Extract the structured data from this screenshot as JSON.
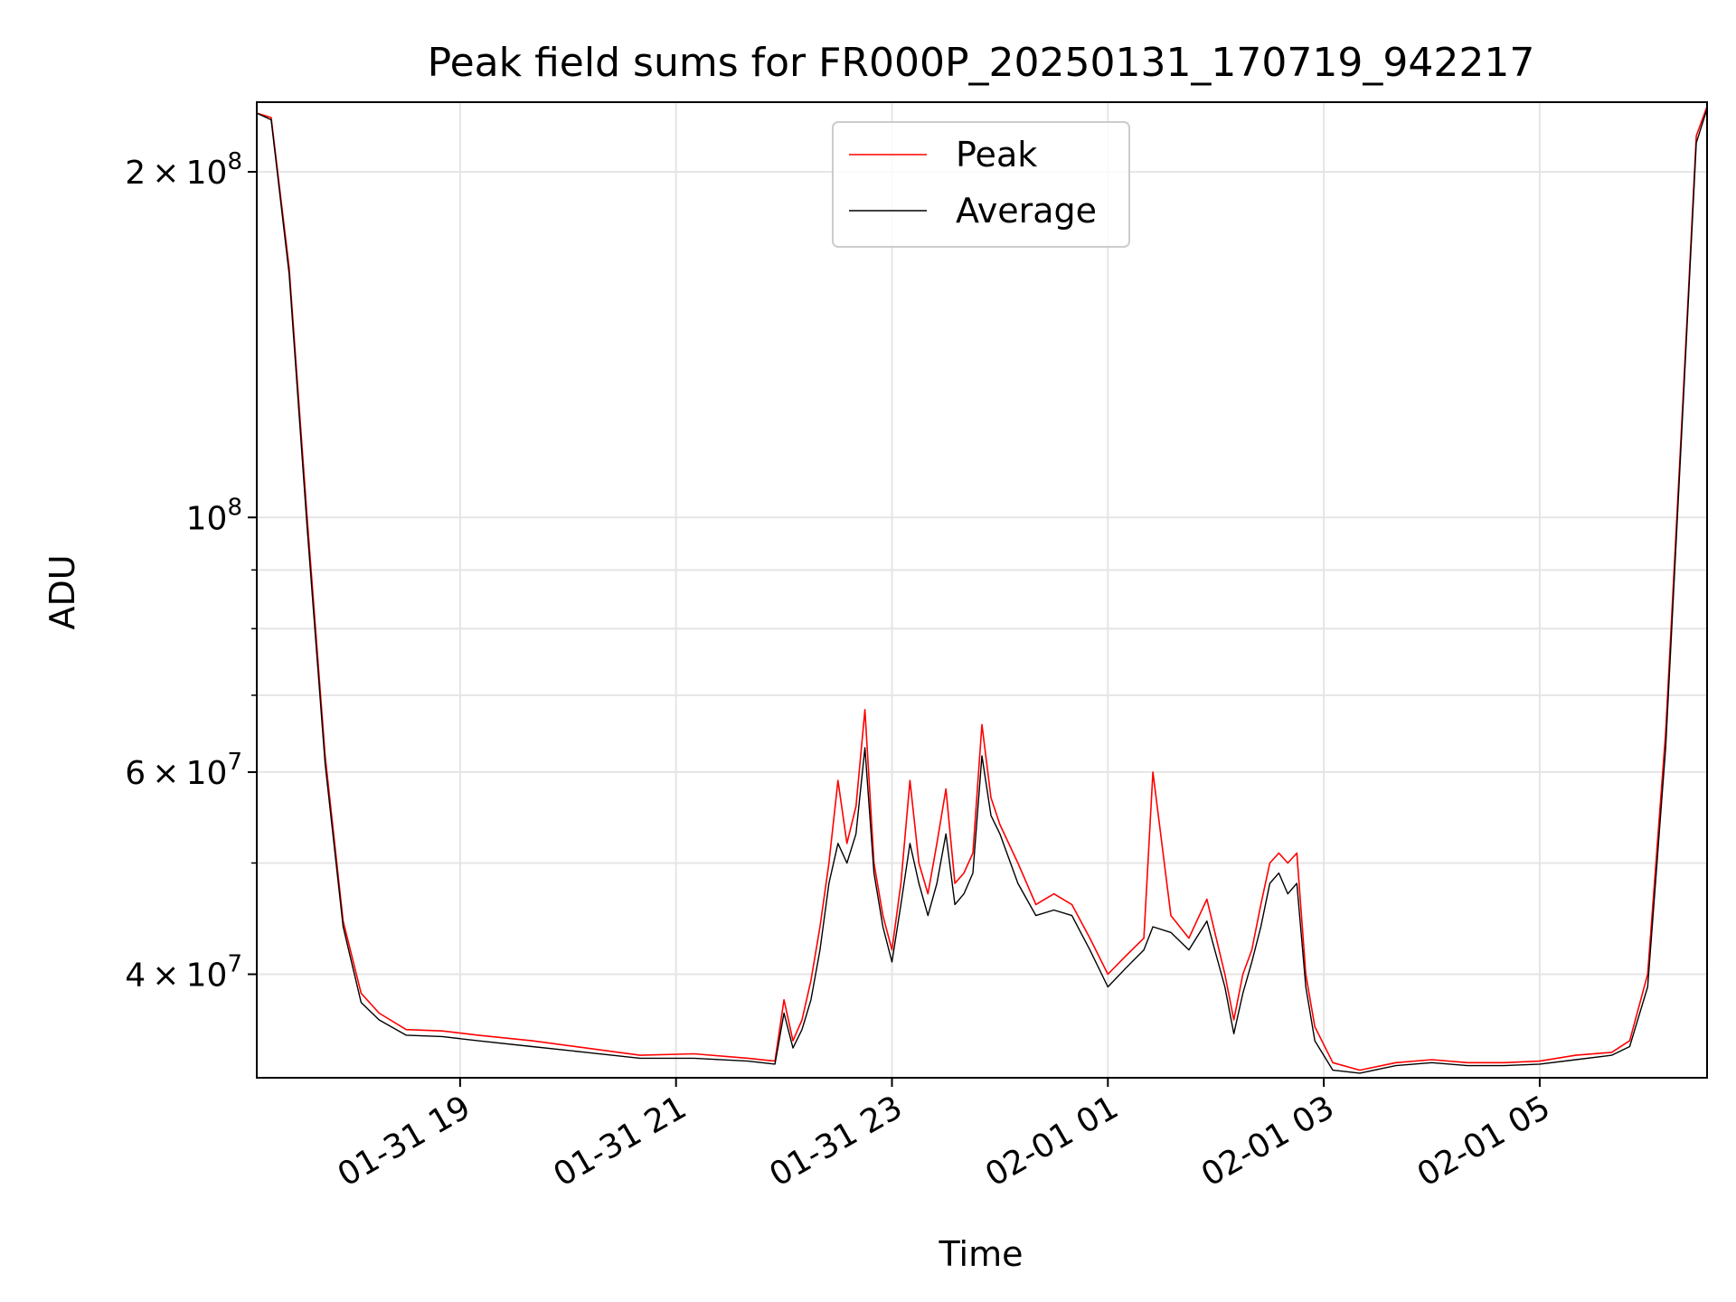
{
  "chart_data": {
    "type": "line",
    "title": "Peak field sums for FR000P_20250131_170719_942217",
    "xlabel": "Time",
    "ylabel": "ADU",
    "y_scale": "log",
    "grid": true,
    "legend_position": "upper center",
    "xlim": [
      "2025-01-31 17:07",
      "2025-02-01 06:33"
    ],
    "ylim": [
      32500000,
      230000000
    ],
    "x_ticks": [
      {
        "t": "2025-01-31 19:00",
        "label": "01-31 19"
      },
      {
        "t": "2025-01-31 21:00",
        "label": "01-31 21"
      },
      {
        "t": "2025-01-31 23:00",
        "label": "01-31 23"
      },
      {
        "t": "2025-02-01 01:00",
        "label": "02-01 01"
      },
      {
        "t": "2025-02-01 03:00",
        "label": "02-01 03"
      },
      {
        "t": "2025-02-01 05:00",
        "label": "02-01 05"
      }
    ],
    "y_ticks": [
      {
        "value": 40000000,
        "base": "4",
        "exp": "7"
      },
      {
        "value": 60000000,
        "base": "6",
        "exp": "7"
      },
      {
        "value": 100000000,
        "base": "",
        "exp": "8"
      },
      {
        "value": 200000000,
        "base": "2",
        "exp": "8"
      }
    ],
    "y_minor_ticks": [
      50000000,
      70000000,
      80000000,
      90000000
    ],
    "series": [
      {
        "name": "Peak",
        "color": "#ff0000",
        "x": [
          "2025-01-31 17:07",
          "2025-01-31 17:15",
          "2025-01-31 17:25",
          "2025-01-31 17:35",
          "2025-01-31 17:45",
          "2025-01-31 17:55",
          "2025-01-31 18:05",
          "2025-01-31 18:15",
          "2025-01-31 18:30",
          "2025-01-31 18:50",
          "2025-01-31 19:10",
          "2025-01-31 19:40",
          "2025-01-31 20:10",
          "2025-01-31 20:40",
          "2025-01-31 21:10",
          "2025-01-31 21:40",
          "2025-01-31 21:55",
          "2025-01-31 22:00",
          "2025-01-31 22:05",
          "2025-01-31 22:10",
          "2025-01-31 22:15",
          "2025-01-31 22:20",
          "2025-01-31 22:25",
          "2025-01-31 22:30",
          "2025-01-31 22:35",
          "2025-01-31 22:40",
          "2025-01-31 22:45",
          "2025-01-31 22:50",
          "2025-01-31 22:55",
          "2025-01-31 23:00",
          "2025-01-31 23:05",
          "2025-01-31 23:10",
          "2025-01-31 23:15",
          "2025-01-31 23:20",
          "2025-01-31 23:25",
          "2025-01-31 23:30",
          "2025-01-31 23:35",
          "2025-01-31 23:40",
          "2025-01-31 23:45",
          "2025-01-31 23:50",
          "2025-01-31 23:55",
          "2025-02-01 00:00",
          "2025-02-01 00:10",
          "2025-02-01 00:20",
          "2025-02-01 00:30",
          "2025-02-01 00:40",
          "2025-02-01 00:50",
          "2025-02-01 01:00",
          "2025-02-01 01:10",
          "2025-02-01 01:20",
          "2025-02-01 01:25",
          "2025-02-01 01:35",
          "2025-02-01 01:45",
          "2025-02-01 01:55",
          "2025-02-01 02:05",
          "2025-02-01 02:10",
          "2025-02-01 02:15",
          "2025-02-01 02:20",
          "2025-02-01 02:25",
          "2025-02-01 02:30",
          "2025-02-01 02:35",
          "2025-02-01 02:40",
          "2025-02-01 02:45",
          "2025-02-01 02:50",
          "2025-02-01 02:55",
          "2025-02-01 03:05",
          "2025-02-01 03:20",
          "2025-02-01 03:40",
          "2025-02-01 04:00",
          "2025-02-01 04:20",
          "2025-02-01 04:40",
          "2025-02-01 05:00",
          "2025-02-01 05:20",
          "2025-02-01 05:40",
          "2025-02-01 05:50",
          "2025-02-01 06:00",
          "2025-02-01 06:10",
          "2025-02-01 06:20",
          "2025-02-01 06:27",
          "2025-02-01 06:33"
        ],
        "y": [
          225000000,
          223000000,
          165000000,
          100000000,
          62000000,
          44500000,
          38500000,
          37000000,
          35800000,
          35700000,
          35400000,
          35000000,
          34500000,
          34000000,
          34100000,
          33800000,
          33600000,
          38000000,
          35000000,
          36500000,
          39500000,
          44000000,
          50000000,
          59000000,
          52000000,
          56000000,
          68000000,
          50000000,
          45000000,
          42000000,
          48000000,
          59000000,
          50000000,
          47000000,
          52000000,
          58000000,
          48000000,
          49000000,
          51000000,
          66000000,
          57000000,
          54000000,
          50000000,
          46000000,
          47000000,
          46000000,
          43000000,
          40000000,
          41500000,
          43000000,
          60000000,
          45000000,
          43000000,
          46500000,
          40000000,
          36500000,
          40000000,
          42000000,
          46000000,
          50000000,
          51000000,
          50000000,
          51000000,
          40000000,
          36000000,
          33500000,
          33000000,
          33500000,
          33700000,
          33500000,
          33500000,
          33600000,
          34000000,
          34200000,
          35000000,
          40000000,
          65000000,
          130000000,
          215000000,
          228000000
        ]
      },
      {
        "name": "Average",
        "color": "#000000",
        "x": [
          "2025-01-31 17:07",
          "2025-01-31 17:15",
          "2025-01-31 17:25",
          "2025-01-31 17:35",
          "2025-01-31 17:45",
          "2025-01-31 17:55",
          "2025-01-31 18:05",
          "2025-01-31 18:15",
          "2025-01-31 18:30",
          "2025-01-31 18:50",
          "2025-01-31 19:10",
          "2025-01-31 19:40",
          "2025-01-31 20:10",
          "2025-01-31 20:40",
          "2025-01-31 21:10",
          "2025-01-31 21:40",
          "2025-01-31 21:55",
          "2025-01-31 22:00",
          "2025-01-31 22:05",
          "2025-01-31 22:10",
          "2025-01-31 22:15",
          "2025-01-31 22:20",
          "2025-01-31 22:25",
          "2025-01-31 22:30",
          "2025-01-31 22:35",
          "2025-01-31 22:40",
          "2025-01-31 22:45",
          "2025-01-31 22:50",
          "2025-01-31 22:55",
          "2025-01-31 23:00",
          "2025-01-31 23:05",
          "2025-01-31 23:10",
          "2025-01-31 23:15",
          "2025-01-31 23:20",
          "2025-01-31 23:25",
          "2025-01-31 23:30",
          "2025-01-31 23:35",
          "2025-01-31 23:40",
          "2025-01-31 23:45",
          "2025-01-31 23:50",
          "2025-01-31 23:55",
          "2025-02-01 00:00",
          "2025-02-01 00:10",
          "2025-02-01 00:20",
          "2025-02-01 00:30",
          "2025-02-01 00:40",
          "2025-02-01 00:50",
          "2025-02-01 01:00",
          "2025-02-01 01:10",
          "2025-02-01 01:20",
          "2025-02-01 01:25",
          "2025-02-01 01:35",
          "2025-02-01 01:45",
          "2025-02-01 01:55",
          "2025-02-01 02:05",
          "2025-02-01 02:10",
          "2025-02-01 02:15",
          "2025-02-01 02:20",
          "2025-02-01 02:25",
          "2025-02-01 02:30",
          "2025-02-01 02:35",
          "2025-02-01 02:40",
          "2025-02-01 02:45",
          "2025-02-01 02:50",
          "2025-02-01 02:55",
          "2025-02-01 03:05",
          "2025-02-01 03:20",
          "2025-02-01 03:40",
          "2025-02-01 04:00",
          "2025-02-01 04:20",
          "2025-02-01 04:40",
          "2025-02-01 05:00",
          "2025-02-01 05:20",
          "2025-02-01 05:40",
          "2025-02-01 05:50",
          "2025-02-01 06:00",
          "2025-02-01 06:10",
          "2025-02-01 06:20",
          "2025-02-01 06:27",
          "2025-02-01 06:33"
        ],
        "y": [
          225000000,
          222000000,
          163000000,
          98000000,
          61000000,
          44000000,
          37800000,
          36500000,
          35400000,
          35300000,
          35000000,
          34600000,
          34200000,
          33800000,
          33800000,
          33600000,
          33400000,
          37000000,
          34500000,
          35800000,
          38000000,
          42000000,
          48000000,
          52000000,
          50000000,
          53000000,
          63000000,
          49000000,
          44000000,
          41000000,
          46000000,
          52000000,
          48000000,
          45000000,
          48000000,
          53000000,
          46000000,
          47000000,
          49000000,
          62000000,
          55000000,
          53000000,
          48000000,
          45000000,
          45500000,
          45000000,
          42000000,
          39000000,
          40500000,
          42000000,
          44000000,
          43500000,
          42000000,
          44500000,
          39000000,
          35500000,
          38500000,
          41000000,
          44000000,
          48000000,
          49000000,
          47000000,
          48000000,
          39000000,
          35000000,
          33000000,
          32800000,
          33300000,
          33500000,
          33300000,
          33300000,
          33400000,
          33700000,
          34000000,
          34600000,
          39000000,
          63000000,
          128000000,
          212000000,
          227000000
        ]
      }
    ]
  }
}
